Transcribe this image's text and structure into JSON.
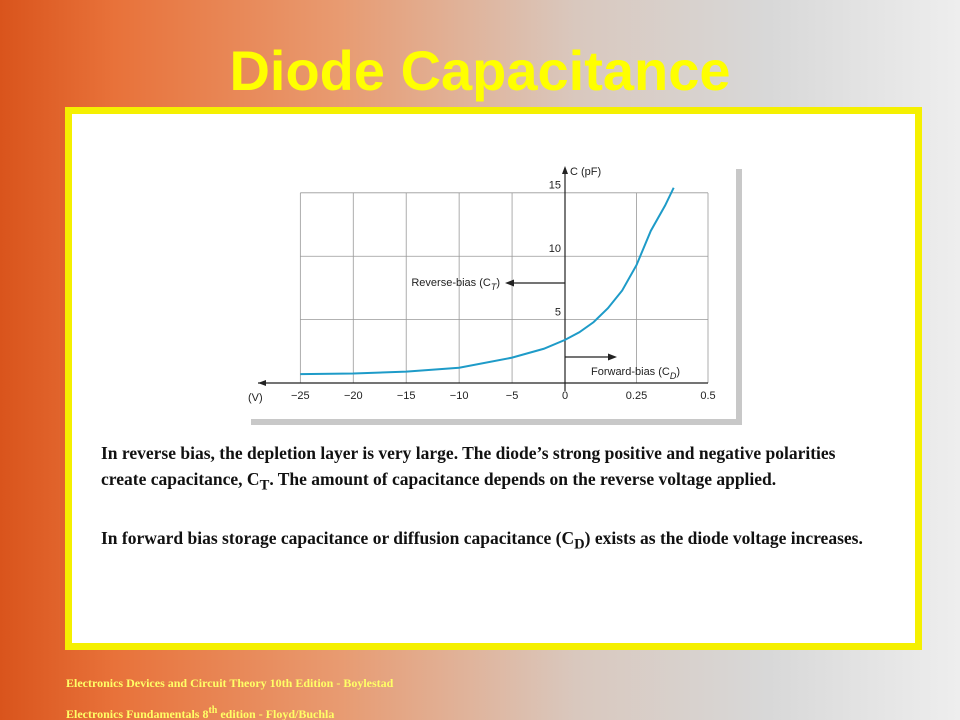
{
  "title": "Diode Capacitance",
  "chart_data": {
    "type": "line",
    "x_label": "(V)",
    "y_label": "C (pF)",
    "xlim": [
      -29,
      0.5
    ],
    "xticks": [
      {
        "value": -25,
        "label": "−25"
      },
      {
        "value": -20,
        "label": "−20"
      },
      {
        "value": -15,
        "label": "−15"
      },
      {
        "value": -10,
        "label": "−10"
      },
      {
        "value": -5,
        "label": "−5"
      },
      0,
      0.25,
      0.5
    ],
    "ylim": [
      0,
      16.8
    ],
    "yticks": [
      5,
      10,
      15
    ],
    "grid": true,
    "series": [
      {
        "color": "#1e9bc8",
        "x": [
          -25,
          -20,
          -15,
          -10,
          -5,
          -2,
          0,
          0.05,
          0.1,
          0.15,
          0.2,
          0.25,
          0.3,
          0.35,
          0.38
        ],
        "values": [
          0.7,
          0.75,
          0.9,
          1.2,
          2.0,
          2.7,
          3.4,
          4.0,
          4.8,
          5.9,
          7.3,
          9.3,
          12.0,
          14.0,
          15.4
        ]
      }
    ],
    "annotations": [
      {
        "text": "Reverse-bias (C",
        "sub": "T",
        "end": ")"
      },
      {
        "text": "Forward-bias (C",
        "sub": "D",
        "end": ")"
      }
    ]
  },
  "paragraphs": [
    {
      "text": "In reverse bias, the depletion layer is very large. The diode’s strong positive and negative polarities create capacitance, C",
      "sub": "T",
      "end": ". The amount of capacitance depends on the reverse voltage applied."
    },
    {
      "text": "In forward bias storage capacitance or diffusion capacitance (C",
      "sub": "D",
      "end": ") exists as the diode voltage increases."
    }
  ],
  "footer": [
    {
      "text": "Electronics Devices and Circuit Theory 10th Edition - Boylestad"
    },
    {
      "text": "Electronics Fundamentals 8",
      "sup": "th",
      "end": " edition - Floyd/Buchla"
    }
  ]
}
